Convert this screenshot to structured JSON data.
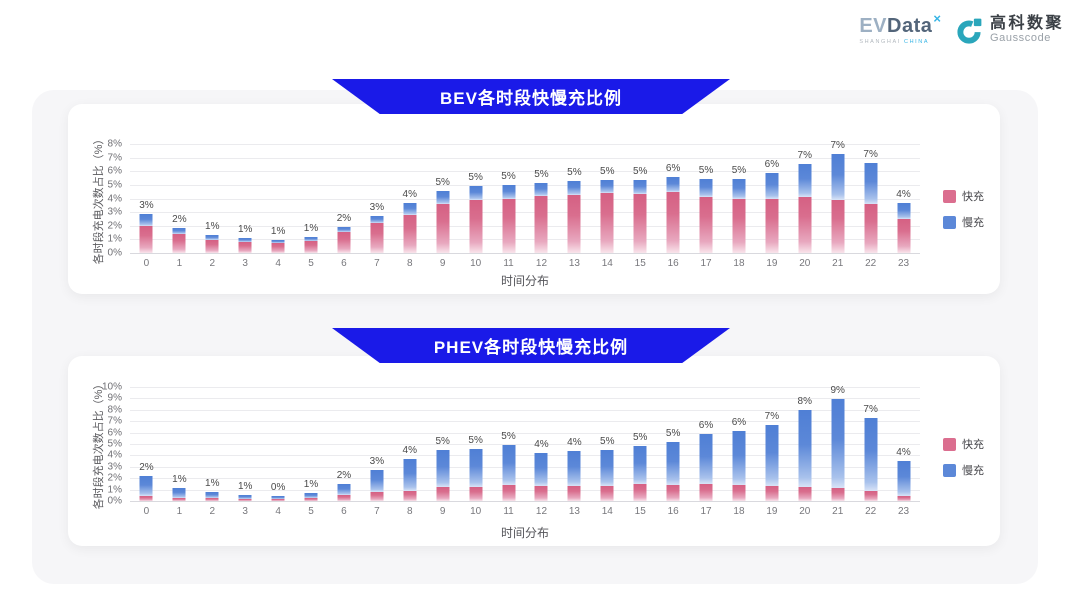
{
  "header": {
    "evdata_logo": {
      "ev": "EV",
      "data": "Data",
      "sup": "×",
      "tagline_left": "SHANGHAI",
      "tagline_right": "CHINA"
    },
    "gausscode_logo": {
      "cn": "高科数聚",
      "en": "Gausscode"
    }
  },
  "colors": {
    "banner_blue": "#1a1ae8",
    "fast_pink": "#DB6E8F",
    "slow_blue": "#5C88D8",
    "panel_bg": "#f6f6f8",
    "logo_teal": "#2aa6bb"
  },
  "chart_data": [
    {
      "type": "bar",
      "stacked": true,
      "title": "BEV各时段快慢充比例",
      "xlabel": "时间分布",
      "ylabel": "各时段充电次数占比（%）",
      "ylim": [
        0,
        8
      ],
      "ytick_step": 1,
      "yticks": [
        "0%",
        "1%",
        "2%",
        "3%",
        "4%",
        "5%",
        "6%",
        "7%",
        "8%"
      ],
      "grid": "horizontal",
      "legend_position": "right",
      "categories": [
        "0",
        "1",
        "2",
        "3",
        "4",
        "5",
        "6",
        "7",
        "8",
        "9",
        "10",
        "11",
        "12",
        "13",
        "14",
        "15",
        "16",
        "17",
        "18",
        "19",
        "20",
        "21",
        "22",
        "23"
      ],
      "series": [
        {
          "name": "快充",
          "color": "#DB6E8F",
          "values": [
            2.0,
            1.4,
            0.95,
            0.8,
            0.7,
            0.85,
            1.55,
            2.2,
            2.8,
            3.6,
            3.9,
            4.0,
            4.15,
            4.25,
            4.4,
            4.35,
            4.5,
            4.1,
            4.0,
            3.95,
            4.1,
            3.9,
            3.6,
            2.5
          ]
        },
        {
          "name": "慢充",
          "color": "#5C88D8",
          "values": [
            0.9,
            0.45,
            0.35,
            0.3,
            0.25,
            0.3,
            0.35,
            0.5,
            0.9,
            0.95,
            1.0,
            1.0,
            1.0,
            1.05,
            0.95,
            1.0,
            1.05,
            1.3,
            1.4,
            1.95,
            2.4,
            3.35,
            3.0,
            1.2
          ]
        }
      ],
      "total_labels": [
        "3%",
        "2%",
        "1%",
        "1%",
        "1%",
        "1%",
        "2%",
        "3%",
        "4%",
        "5%",
        "5%",
        "5%",
        "5%",
        "5%",
        "5%",
        "5%",
        "6%",
        "5%",
        "5%",
        "6%",
        "7%",
        "7%",
        "7%",
        "4%"
      ]
    },
    {
      "type": "bar",
      "stacked": true,
      "title": "PHEV各时段快慢充比例",
      "xlabel": "时间分布",
      "ylabel": "各时段充电次数占比（%）",
      "ylim": [
        0,
        10
      ],
      "ytick_step": 1,
      "yticks": [
        "0%",
        "1%",
        "2%",
        "3%",
        "4%",
        "5%",
        "6%",
        "7%",
        "8%",
        "9%",
        "10%"
      ],
      "grid": "horizontal",
      "legend_position": "right",
      "categories": [
        "0",
        "1",
        "2",
        "3",
        "4",
        "5",
        "6",
        "7",
        "8",
        "9",
        "10",
        "11",
        "12",
        "13",
        "14",
        "15",
        "16",
        "17",
        "18",
        "19",
        "20",
        "21",
        "22",
        "23"
      ],
      "series": [
        {
          "name": "快充",
          "color": "#DB6E8F",
          "values": [
            0.45,
            0.3,
            0.25,
            0.2,
            0.15,
            0.25,
            0.5,
            0.8,
            0.9,
            1.2,
            1.25,
            1.4,
            1.3,
            1.3,
            1.3,
            1.5,
            1.4,
            1.45,
            1.4,
            1.3,
            1.2,
            1.1,
            0.9,
            0.45
          ]
        },
        {
          "name": "慢充",
          "color": "#5C88D8",
          "values": [
            1.75,
            0.8,
            0.5,
            0.35,
            0.25,
            0.45,
            1.0,
            1.95,
            2.8,
            3.3,
            3.35,
            3.5,
            2.95,
            3.1,
            3.2,
            3.3,
            3.8,
            4.4,
            4.7,
            5.4,
            6.75,
            7.85,
            6.35,
            3.1
          ]
        }
      ],
      "total_labels": [
        "2%",
        "1%",
        "1%",
        "1%",
        "0%",
        "1%",
        "2%",
        "3%",
        "4%",
        "5%",
        "5%",
        "5%",
        "4%",
        "4%",
        "5%",
        "5%",
        "5%",
        "6%",
        "6%",
        "7%",
        "8%",
        "9%",
        "7%",
        "4%"
      ]
    }
  ]
}
